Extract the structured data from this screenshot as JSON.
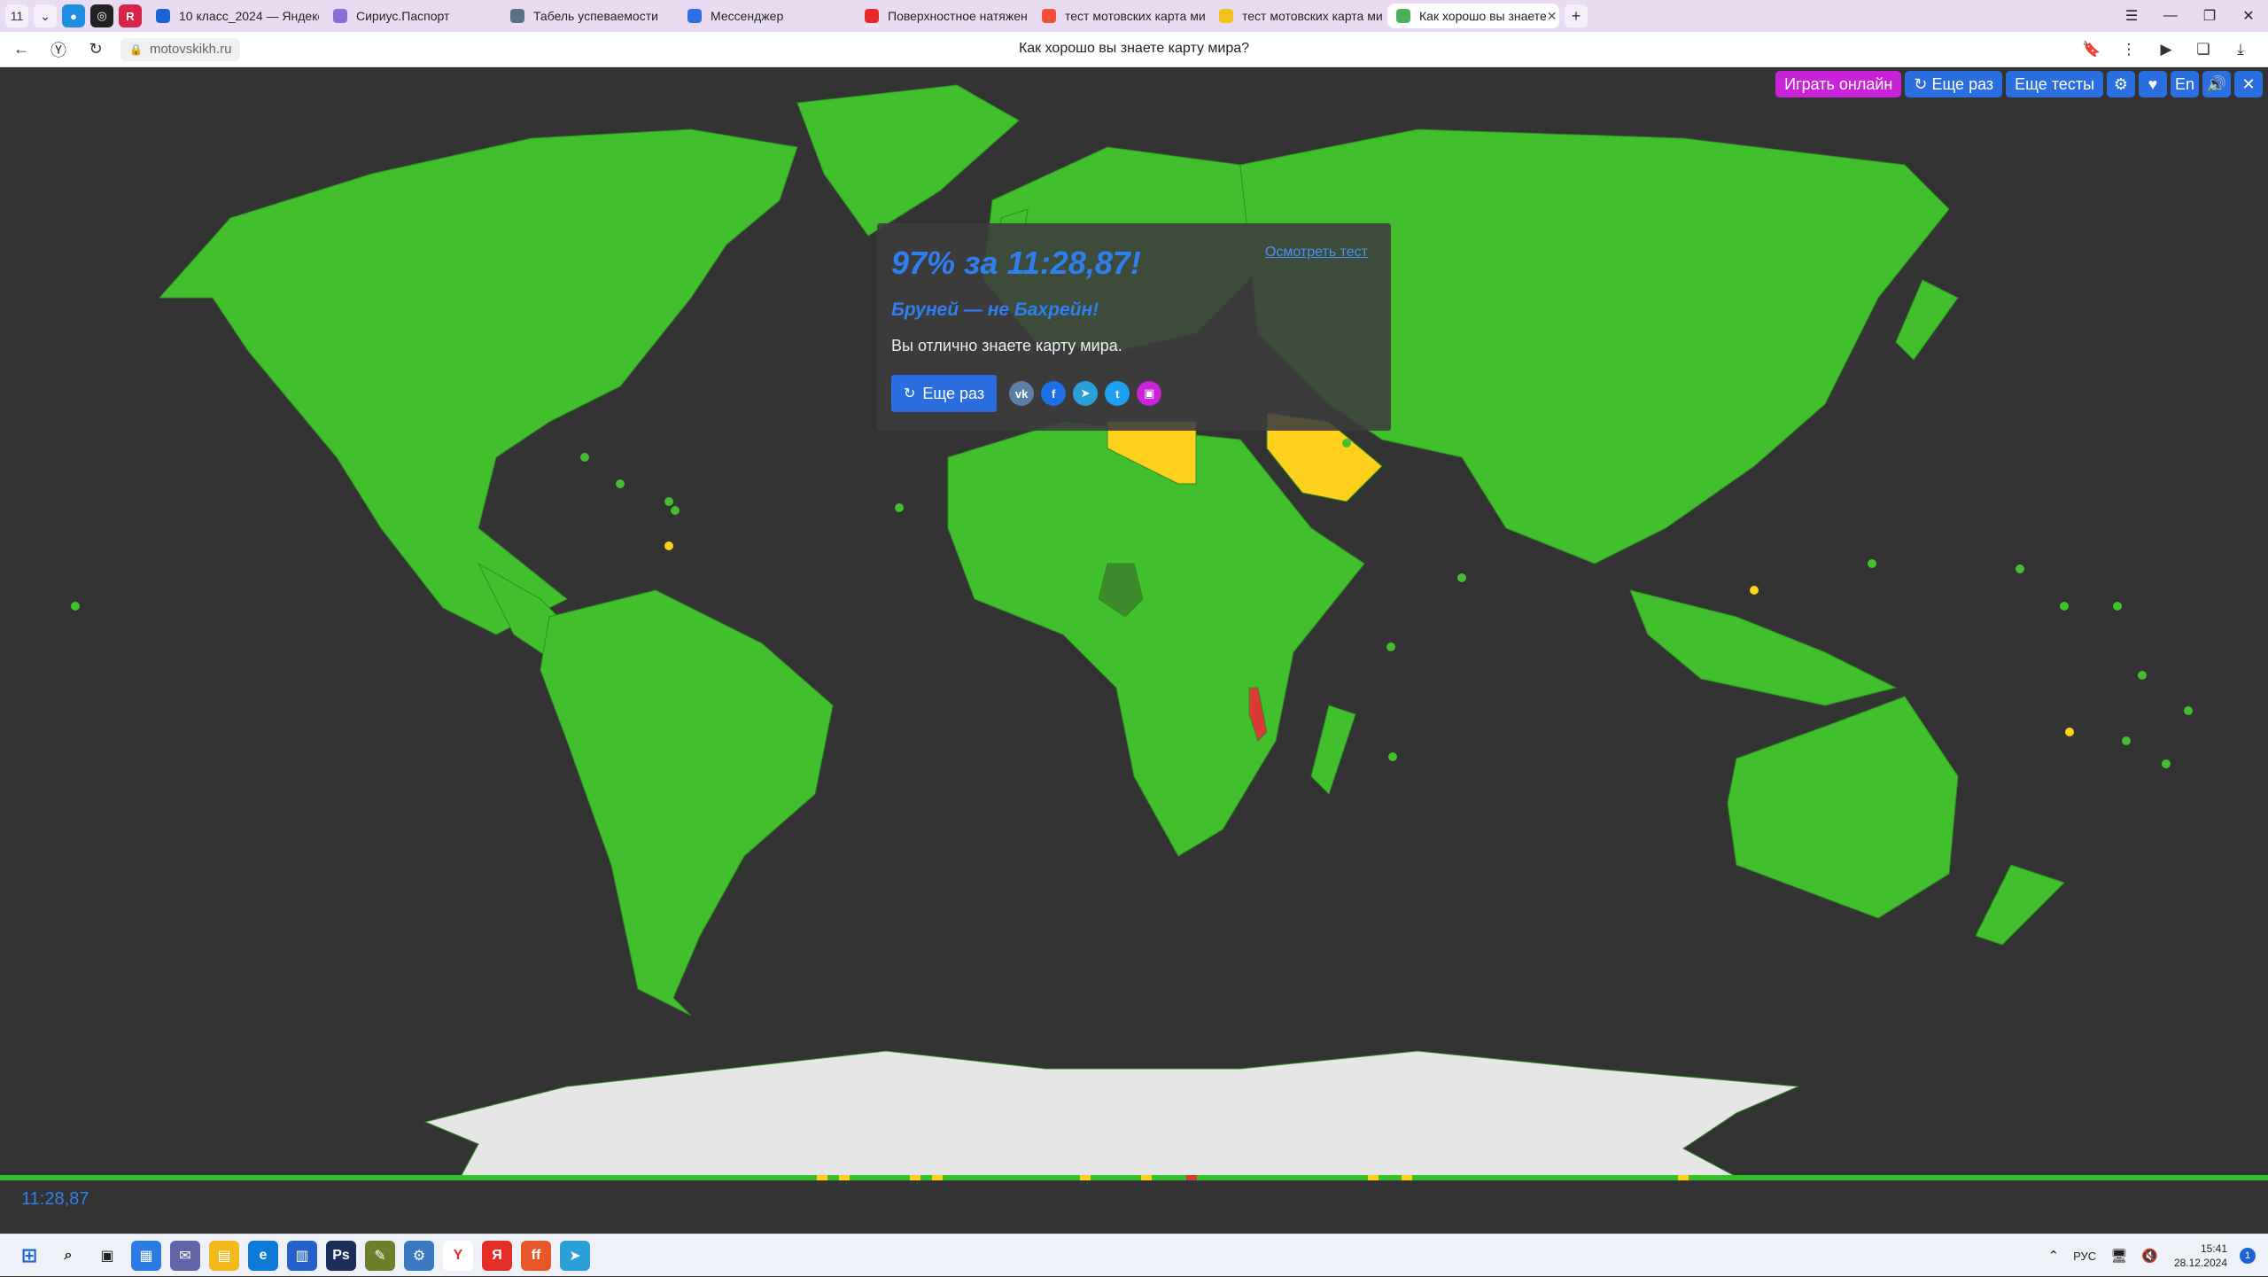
{
  "browser": {
    "tab_counter": "11",
    "tabs": [
      {
        "title": "10 класс_2024 — Яндекс.Д",
        "favicon_color": "#1e63d6",
        "icon": "cloud-icon"
      },
      {
        "title": "Сириус.Паспорт",
        "favicon_color": "#8c6cd8",
        "icon": "sirius-icon"
      },
      {
        "title": "Табель успеваемости",
        "favicon_color": "#5a6f8a",
        "icon": "grade-icon"
      },
      {
        "title": "Мессенджер",
        "favicon_color": "#2f6fe8",
        "icon": "messenger-icon"
      },
      {
        "title": "Поверхностное натяжен",
        "favicon_color": "#e62b2b",
        "icon": "youtube-icon"
      },
      {
        "title": "тест мотовских карта ми",
        "favicon_color": "#f0503c",
        "icon": "yandex-icon"
      },
      {
        "title": "тест мотовских карта ми",
        "favicon_color": "#f1c21b",
        "icon": "images-icon"
      },
      {
        "title": "Как хорошо вы знаете",
        "favicon_color": "#4fb05b",
        "icon": "map-icon"
      }
    ],
    "new_tab": "+",
    "url": "motovskikh.ru",
    "page_title": "Как хорошо вы знаете карту мира?"
  },
  "top_controls": {
    "play_online": "Играть онлайн",
    "again": "↻ Еще раз",
    "more_tests": "Еще тесты",
    "settings": "⚙",
    "favorite": "♥",
    "lang": "En",
    "sound": "🔊",
    "close": "✕"
  },
  "result": {
    "score": "97% за 11:28,87!",
    "review_link": "Осмотреть тест",
    "note": "Бруней — не Бахрейн!",
    "message": "Вы отлично знаете карту мира.",
    "again_button": "Еще раз",
    "share": [
      {
        "name": "vk",
        "label": "vk",
        "color": "#5b7fa6"
      },
      {
        "name": "facebook",
        "label": "f",
        "color": "#1f6fe5"
      },
      {
        "name": "telegram",
        "label": "➤",
        "color": "#2a9fd8"
      },
      {
        "name": "twitter",
        "label": "t",
        "color": "#1da1f2"
      },
      {
        "name": "image",
        "label": "▣",
        "color": "#c823d8"
      }
    ]
  },
  "colors": {
    "correct": "#41bf2d",
    "near_miss": "#ffd11d",
    "wrong": "#d93a35",
    "current": "#3c8a2c",
    "antarctica": "#e6e6e6",
    "background": "#333333",
    "accent": "#2f7ff0"
  },
  "progress": {
    "marks": [
      {
        "pos": 0.36,
        "status": "near_miss"
      },
      {
        "pos": 0.37,
        "status": "near_miss"
      },
      {
        "pos": 0.401,
        "status": "near_miss"
      },
      {
        "pos": 0.411,
        "status": "near_miss"
      },
      {
        "pos": 0.476,
        "status": "near_miss"
      },
      {
        "pos": 0.503,
        "status": "near_miss"
      },
      {
        "pos": 0.523,
        "status": "wrong"
      },
      {
        "pos": 0.603,
        "status": "near_miss"
      },
      {
        "pos": 0.618,
        "status": "near_miss"
      },
      {
        "pos": 0.74,
        "status": "near_miss"
      }
    ]
  },
  "timer": "11:28,87",
  "taskbar": {
    "lang": "РУС",
    "time": "15:41",
    "date": "28.12.2024",
    "notifications": "1"
  }
}
